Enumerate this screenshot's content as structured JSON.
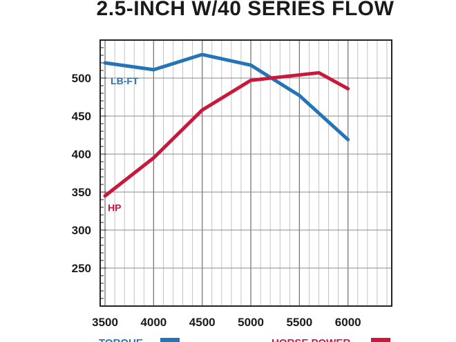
{
  "chart_data": {
    "type": "line",
    "title": "2.5-INCH W/40 SERIES FLOW",
    "x": [
      3500,
      4000,
      4500,
      5000,
      5500,
      6000
    ],
    "x_ticks": [
      "3500",
      "4000",
      "4500",
      "5000",
      "5500",
      "6000"
    ],
    "xlim": [
      3450,
      6450
    ],
    "y_ticks": [
      "250",
      "300",
      "350",
      "400",
      "450",
      "500"
    ],
    "ylim": [
      200,
      550
    ],
    "grid": true,
    "series": [
      {
        "name": "LB-FT",
        "color": "#2474b8",
        "points": [
          [
            3500,
            520
          ],
          [
            4000,
            511
          ],
          [
            4500,
            531
          ],
          [
            5000,
            517
          ],
          [
            5500,
            477
          ],
          [
            6000,
            419
          ]
        ]
      },
      {
        "name": "HP",
        "color": "#c8193c",
        "points": [
          [
            3500,
            345
          ],
          [
            4000,
            395
          ],
          [
            4500,
            458
          ],
          [
            5000,
            497
          ],
          [
            5700,
            507
          ],
          [
            6000,
            486
          ]
        ]
      }
    ],
    "legend": [
      {
        "label": "TORQUE",
        "color": "#2474b8"
      },
      {
        "label": "HORSE POWER",
        "color": "#c8193c"
      }
    ],
    "legend_position": "bottom"
  }
}
